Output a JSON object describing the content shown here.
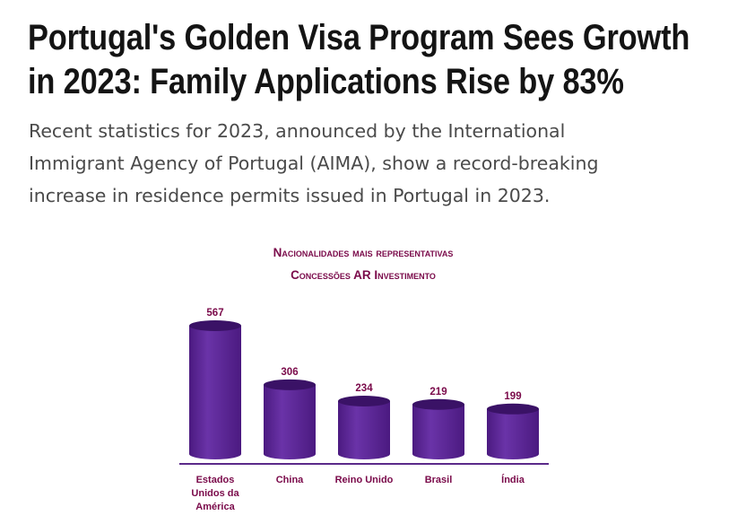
{
  "article": {
    "headline_line1": "Portugal's Golden Visa Program Sees Growth",
    "headline_line2": "in 2023: Family Applications Rise by 83%",
    "intro_line1": "Recent statistics for 2023, announced by the International",
    "intro_line2": "Immigrant Agency of Portugal (AIMA), show a record-breaking",
    "intro_line3": "increase in residence permits issued in Portugal in 2023."
  },
  "colors": {
    "bar": "#4b1a80",
    "bar_highlight": "#6a33a8",
    "bar_top": "#3a1266",
    "axis": "#5b2a8a",
    "label": "#7a0a4a"
  },
  "chart_data": {
    "type": "bar",
    "title_line1": "Nacionalidades mais representativas",
    "title_line2": "Concessões AR Investimento",
    "categories": [
      "Estados Unidos da América",
      "China",
      "Reino Unido",
      "Brasil",
      "Índia"
    ],
    "category_lines": [
      [
        "Estados",
        "Unidos da",
        "América"
      ],
      [
        "China"
      ],
      [
        "Reino Unido"
      ],
      [
        "Brasil"
      ],
      [
        "Índia"
      ]
    ],
    "values": [
      567,
      306,
      234,
      219,
      199
    ],
    "value_labels": [
      "567",
      "306",
      "234",
      "219",
      "199"
    ],
    "ylim": [
      0,
      567
    ],
    "grid": false,
    "legend": "none"
  }
}
